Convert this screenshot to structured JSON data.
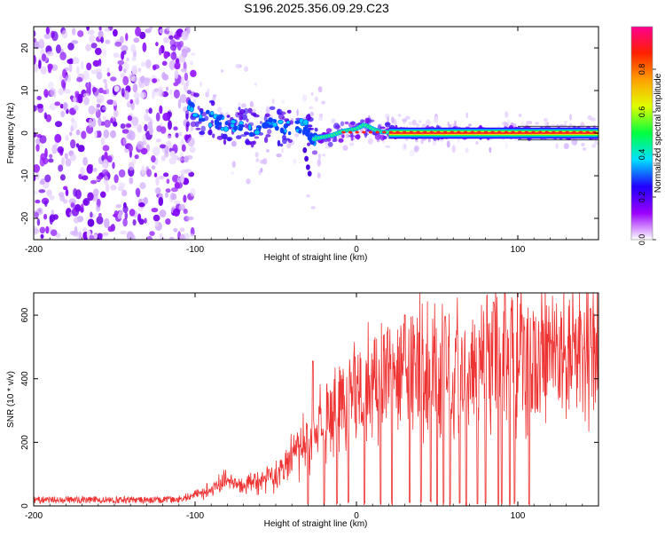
{
  "title": "S196.2025.356.09.29.C23",
  "chart_data": [
    {
      "id": "spectrogram",
      "type": "heatmap",
      "xlabel": "Height of straight line (km)",
      "ylabel": "Frequency (Hz)",
      "xlim": [
        -200,
        150
      ],
      "ylim": [
        -25,
        25
      ],
      "xticks": [
        -200,
        -100,
        0,
        100
      ],
      "yticks": [
        -20,
        -10,
        0,
        10,
        20
      ],
      "xtick_labels": [
        "-200",
        "-100",
        "0",
        "100"
      ],
      "ytick_labels": [
        "-20",
        "-10",
        "0",
        "10",
        "20"
      ],
      "colorbar": {
        "label": "Normalized spectral amplitude",
        "range": [
          0,
          1
        ],
        "ticks": [
          0.0,
          0.2,
          0.4,
          0.6,
          0.8
        ],
        "tick_labels": [
          "0.0",
          "0.2",
          "0.4",
          "0.6",
          "0.8"
        ],
        "colors": [
          "#ffffff",
          "#9a00ff",
          "#2000ff",
          "#00e0ff",
          "#00ff40",
          "#e0ff00",
          "#ffa000",
          "#ff2000",
          "#ff0090"
        ]
      },
      "features": {
        "noise_region_km": [
          -200,
          -105
        ],
        "transition_region_km": [
          -105,
          -25
        ],
        "stable_line_km": [
          -25,
          150
        ],
        "line_frequency_hz": 0
      },
      "ridge": {
        "x": [
          -104,
          -95,
          -85,
          -75,
          -65,
          -55,
          -45,
          -38,
          -32,
          -27,
          -22,
          -15,
          -8,
          0,
          5,
          10,
          15,
          25,
          50,
          100,
          150
        ],
        "y": [
          6,
          4,
          2.5,
          1.5,
          1.0,
          1.5,
          1.5,
          1.0,
          1.5,
          -1.5,
          -1.0,
          -0.5,
          0.5,
          1.0,
          2.0,
          1.0,
          0.3,
          0.1,
          0.1,
          0.1,
          0.1
        ]
      }
    },
    {
      "id": "snr",
      "type": "line",
      "xlabel": "Height of straight line (km)",
      "ylabel": "SNR (10 * v/v)",
      "xlim": [
        -200,
        150
      ],
      "ylim": [
        0,
        670
      ],
      "xticks": [
        -200,
        -100,
        0,
        100
      ],
      "yticks": [
        0,
        200,
        400,
        600
      ],
      "xtick_labels": [
        "-200",
        "-100",
        "0",
        "100"
      ],
      "ytick_labels": [
        "0",
        "200",
        "400",
        "600"
      ],
      "color": "#ee3333",
      "envelope": {
        "x": [
          -200,
          -150,
          -110,
          -100,
          -90,
          -80,
          -70,
          -60,
          -50,
          -40,
          -30,
          -20,
          -10,
          0,
          10,
          20,
          30,
          40,
          50,
          60,
          70,
          80,
          90,
          100,
          110,
          120,
          130,
          140,
          150
        ],
        "y": [
          15,
          18,
          20,
          35,
          55,
          80,
          60,
          80,
          100,
          150,
          220,
          270,
          310,
          360,
          400,
          420,
          440,
          450,
          440,
          420,
          450,
          460,
          470,
          470,
          470,
          470,
          475,
          480,
          490
        ]
      },
      "dropouts_km": [
        -30,
        -20,
        -12,
        -5,
        5,
        15,
        22,
        30,
        33,
        40,
        46,
        50,
        54,
        58,
        64,
        68,
        75,
        80,
        85,
        88,
        90,
        95,
        98,
        107
      ],
      "peaks": [
        {
          "x": -27,
          "y": 455
        },
        {
          "x": 30,
          "y": 600
        },
        {
          "x": 55,
          "y": 595
        },
        {
          "x": 85,
          "y": 640
        },
        {
          "x": 92,
          "y": 670
        },
        {
          "x": 145,
          "y": 620
        }
      ]
    }
  ]
}
